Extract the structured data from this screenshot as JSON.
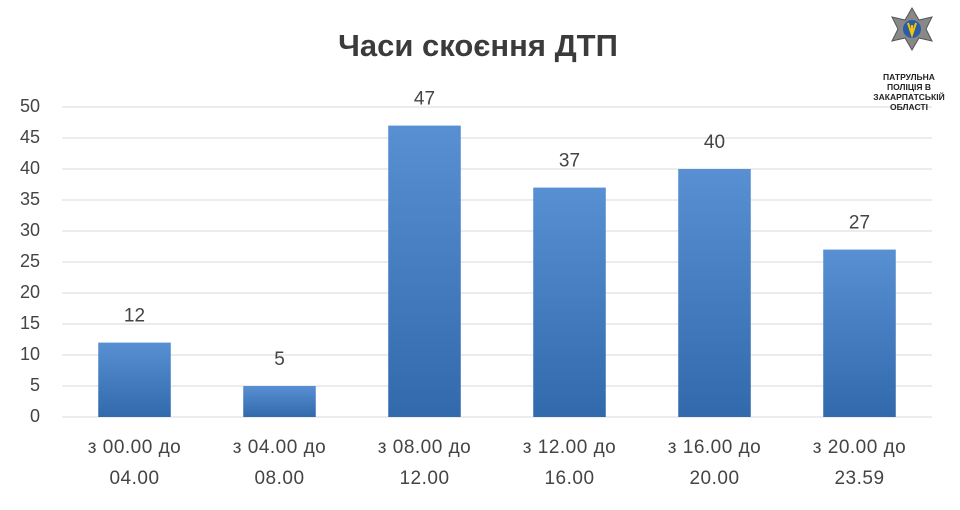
{
  "chart_data": {
    "type": "bar",
    "title": "Часи скоєння  ДТП",
    "logo_text": "ПАТРУЛЬНА ПОЛІЦІЯ В ЗАКАРПАТСЬКІЙ ОБЛАСТІ",
    "categories": [
      "з 00.00  до 04.00",
      "з 04.00 до 08.00",
      "з 08.00 до 12.00",
      "з 12.00 до 16.00",
      "з 16.00 до 20.00",
      "з 20.00 до 23.59"
    ],
    "values": [
      12,
      5,
      47,
      37,
      40,
      27
    ],
    "color": "#3b7ccc",
    "ylim": [
      0,
      50
    ],
    "yticks": [
      0,
      5,
      10,
      15,
      20,
      25,
      30,
      35,
      40,
      45,
      50
    ],
    "grid": true
  }
}
